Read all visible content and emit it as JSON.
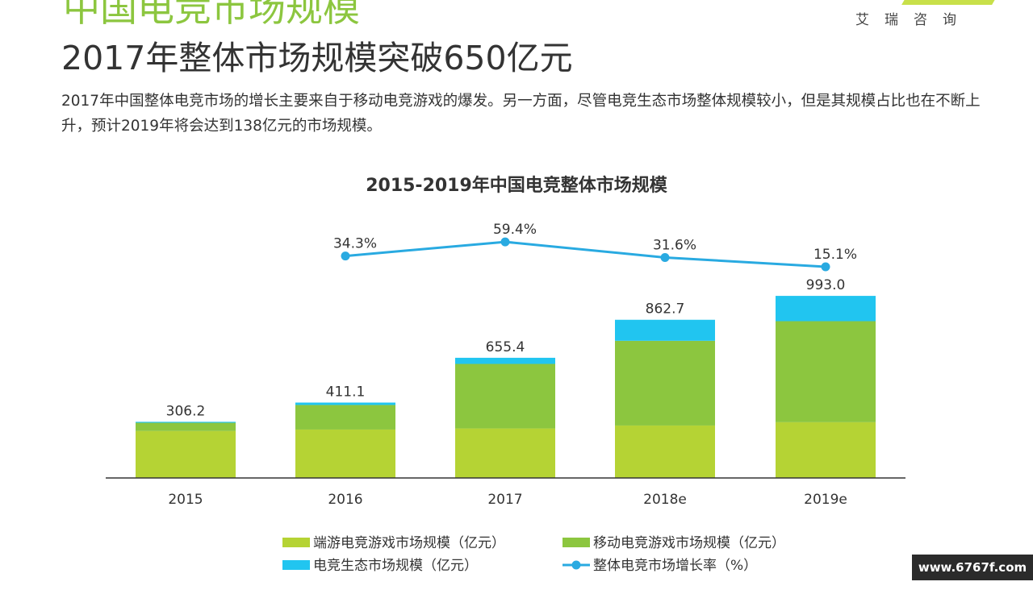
{
  "header": {
    "section_title": "中国电竞市场规模",
    "brand": "艾瑞咨询",
    "headline": "2017年整体市场规模突破650亿元",
    "description": "2017年中国整体电竞市场的增长主要来自于移动电竞游戏的爆发。另一方面，尽管电竞生态市场整体规模较小，但是其规模占比也在不断上升，预计2019年将会达到138亿元的市场规模。"
  },
  "colors": {
    "pc_game": "#b5d334",
    "mobile_game": "#8cc63f",
    "ecosystem": "#21c5f0",
    "growth_line": "#29aae1"
  },
  "chart_data": {
    "type": "bar",
    "stacked": true,
    "title": "2015-2019年中国电竞整体市场规模",
    "categories": [
      "2015",
      "2016",
      "2017",
      "2018e",
      "2019e"
    ],
    "series": [
      {
        "name": "端游电竞游戏市场规模（亿元）",
        "values": [
          256,
          264,
          270,
          286,
          304
        ]
      },
      {
        "name": "移动电竞游戏市场规模（亿元）",
        "values": [
          45,
          134,
          352,
          462,
          551
        ]
      },
      {
        "name": "电竞生态市场规模（亿元）",
        "values": [
          5.2,
          13.1,
          33.4,
          114.7,
          138
        ]
      }
    ],
    "totals": [
      "306.2",
      "411.1",
      "655.4",
      "862.7",
      "993.0"
    ],
    "line": {
      "name": "整体电竞市场增长率（%）",
      "categories": [
        "2016",
        "2017",
        "2018e",
        "2019e"
      ],
      "values": [
        34.3,
        59.4,
        31.6,
        15.1
      ],
      "labels": [
        "34.3%",
        "59.4%",
        "31.6%",
        "15.1%"
      ]
    },
    "ylim": [
      0,
      1000
    ],
    "legend_position": "bottom",
    "grid": false
  },
  "watermark": "www.6767f.com"
}
